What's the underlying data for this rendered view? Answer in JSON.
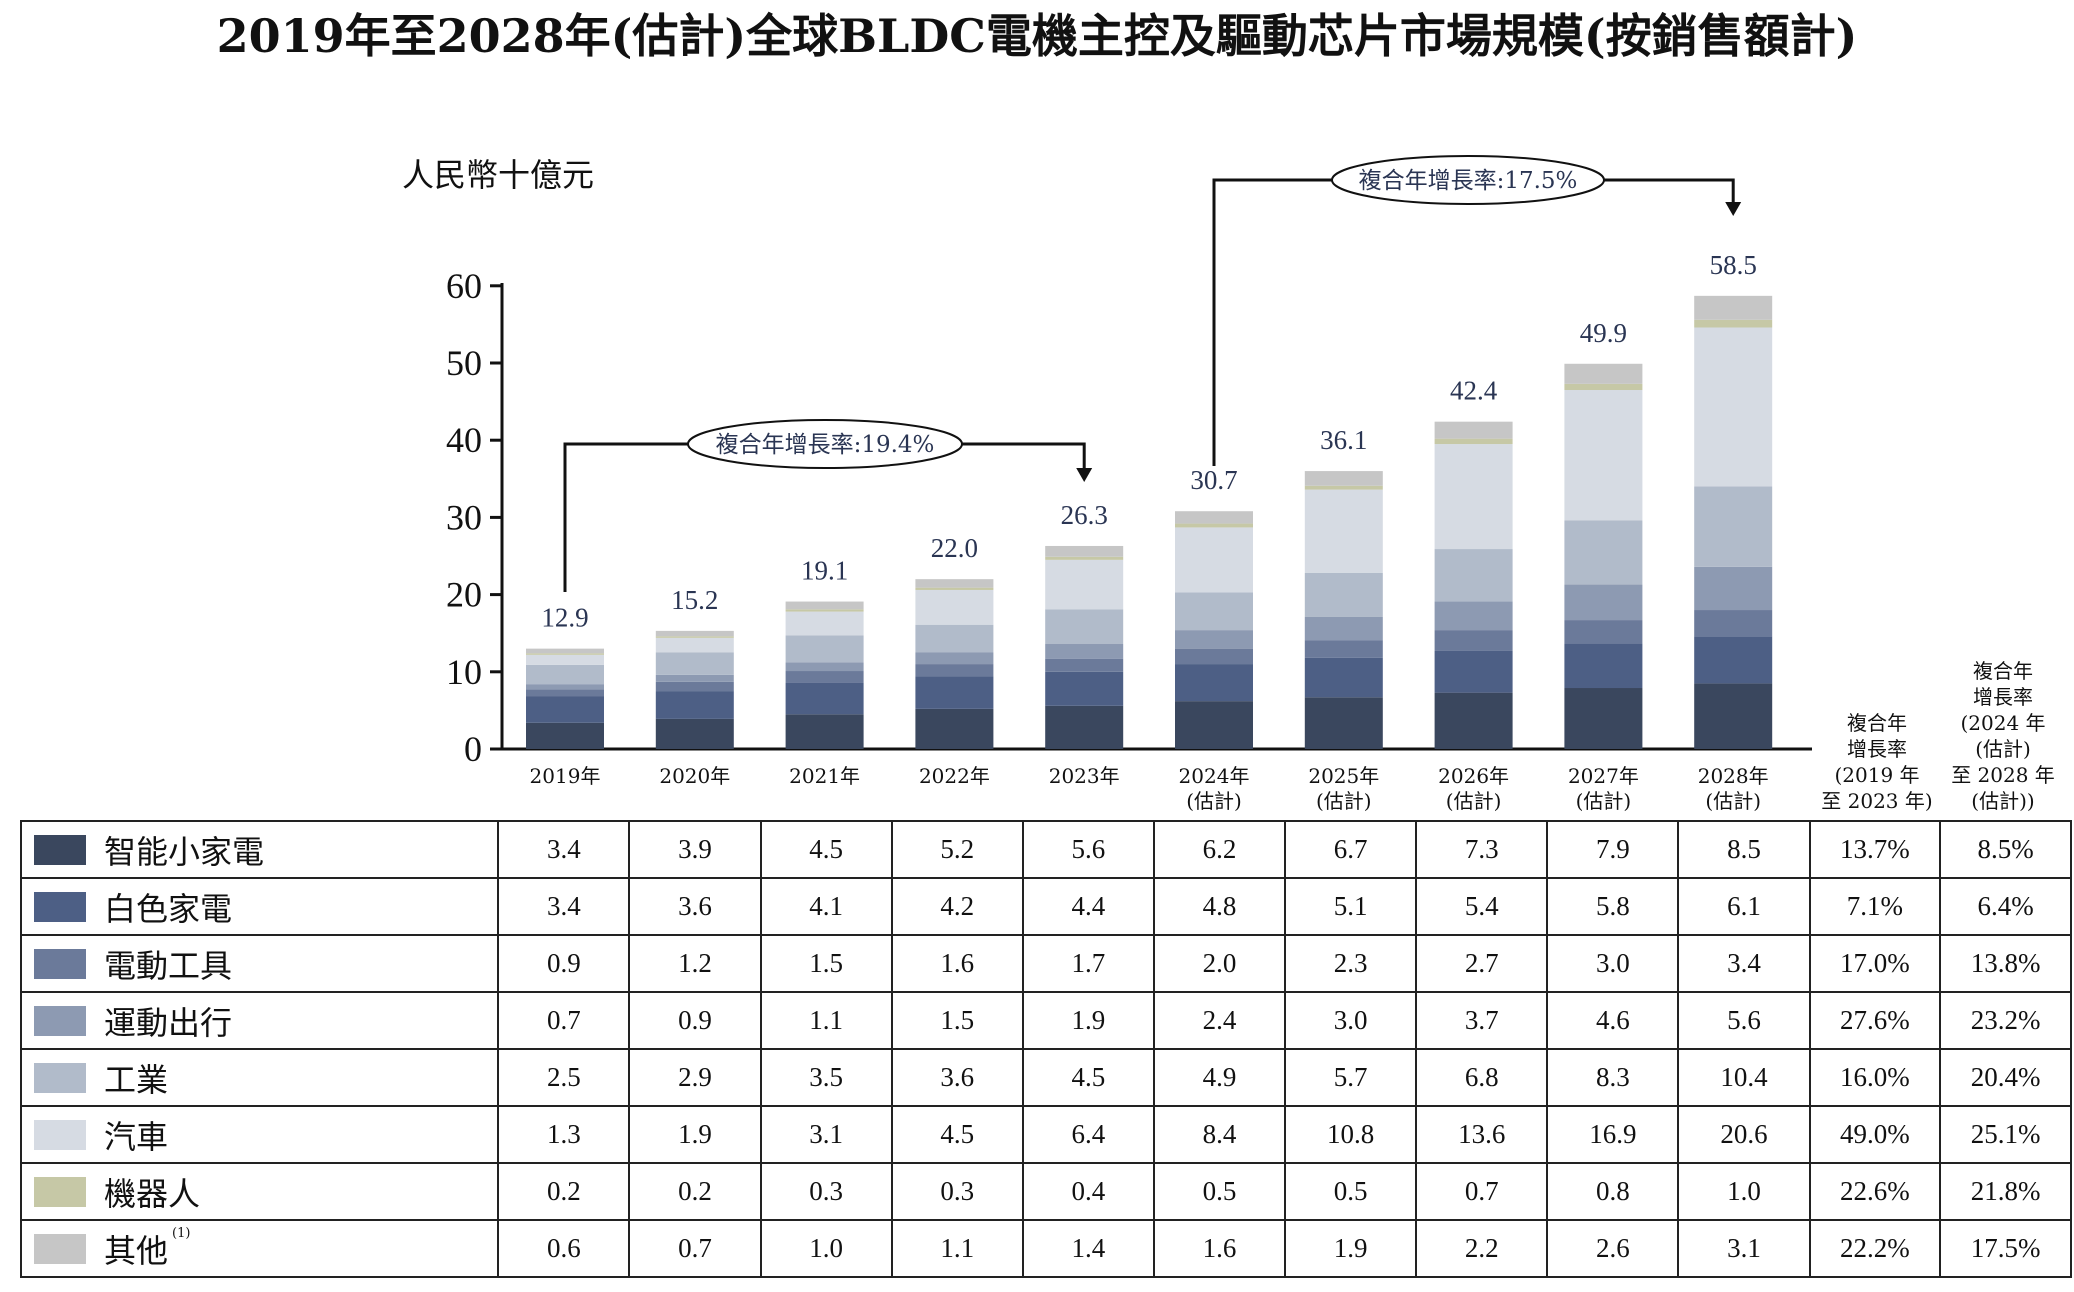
{
  "title": "2019年至2028年(估計)全球BLDC電機主控及驅動芯片市場規模(按銷售額計)",
  "chart_data": {
    "type": "bar",
    "stacked": true,
    "unit": "人民幣十億元",
    "ylim": [
      0,
      60
    ],
    "yticks": [
      "0",
      "10",
      "20",
      "30",
      "40",
      "50",
      "60"
    ],
    "categories": [
      "2019年",
      "2020年",
      "2021年",
      "2022年",
      "2023年",
      "2024年",
      "2025年",
      "2026年",
      "2027年",
      "2028年"
    ],
    "category_notes": [
      "",
      "",
      "",
      "",
      "",
      "(估計)",
      "(估計)",
      "(估計)",
      "(估計)",
      "(估計)"
    ],
    "totals": [
      "12.9",
      "15.2",
      "19.1",
      "22.0",
      "26.3",
      "30.7",
      "36.1",
      "42.4",
      "49.9",
      "58.5"
    ],
    "series": [
      {
        "name": "智能小家電",
        "color": "#3a475e",
        "values": [
          3.4,
          3.9,
          4.5,
          5.2,
          5.6,
          6.2,
          6.7,
          7.3,
          7.9,
          8.5
        ],
        "labels": [
          "3.4",
          "3.9",
          "4.5",
          "5.2",
          "5.6",
          "6.2",
          "6.7",
          "7.3",
          "7.9",
          "8.5"
        ],
        "cagr1": "13.7%",
        "cagr2": "8.5%"
      },
      {
        "name": "白色家電",
        "color": "#4d5f85",
        "values": [
          3.4,
          3.6,
          4.1,
          4.2,
          4.4,
          4.8,
          5.1,
          5.4,
          5.8,
          6.1
        ],
        "labels": [
          "3.4",
          "3.6",
          "4.1",
          "4.2",
          "4.4",
          "4.8",
          "5.1",
          "5.4",
          "5.8",
          "6.1"
        ],
        "cagr1": "7.1%",
        "cagr2": "6.4%"
      },
      {
        "name": "電動工具",
        "color": "#6b7a9a",
        "values": [
          0.9,
          1.2,
          1.5,
          1.6,
          1.7,
          2.0,
          2.3,
          2.7,
          3.0,
          3.4
        ],
        "labels": [
          "0.9",
          "1.2",
          "1.5",
          "1.6",
          "1.7",
          "2.0",
          "2.3",
          "2.7",
          "3.0",
          "3.4"
        ],
        "cagr1": "17.0%",
        "cagr2": "13.8%"
      },
      {
        "name": "運動出行",
        "color": "#8d9ab2",
        "values": [
          0.7,
          0.9,
          1.1,
          1.5,
          1.9,
          2.4,
          3.0,
          3.7,
          4.6,
          5.6
        ],
        "labels": [
          "0.7",
          "0.9",
          "1.1",
          "1.5",
          "1.9",
          "2.4",
          "3.0",
          "3.7",
          "4.6",
          "5.6"
        ],
        "cagr1": "27.6%",
        "cagr2": "23.2%"
      },
      {
        "name": "工業",
        "color": "#b1bbca",
        "values": [
          2.5,
          2.9,
          3.5,
          3.6,
          4.5,
          4.9,
          5.7,
          6.8,
          8.3,
          10.4
        ],
        "labels": [
          "2.5",
          "2.9",
          "3.5",
          "3.6",
          "4.5",
          "4.9",
          "5.7",
          "6.8",
          "8.3",
          "10.4"
        ],
        "cagr1": "16.0%",
        "cagr2": "20.4%"
      },
      {
        "name": "汽車",
        "color": "#d6dbe3",
        "values": [
          1.3,
          1.9,
          3.1,
          4.5,
          6.4,
          8.4,
          10.8,
          13.6,
          16.9,
          20.6
        ],
        "labels": [
          "1.3",
          "1.9",
          "3.1",
          "4.5",
          "6.4",
          "8.4",
          "10.8",
          "13.6",
          "16.9",
          "20.6"
        ],
        "cagr1": "49.0%",
        "cagr2": "25.1%"
      },
      {
        "name": "機器人",
        "color": "#c6c8a6",
        "values": [
          0.2,
          0.2,
          0.3,
          0.3,
          0.4,
          0.5,
          0.5,
          0.7,
          0.8,
          1.0
        ],
        "labels": [
          "0.2",
          "0.2",
          "0.3",
          "0.3",
          "0.4",
          "0.5",
          "0.5",
          "0.7",
          "0.8",
          "1.0"
        ],
        "cagr1": "22.6%",
        "cagr2": "21.8%"
      },
      {
        "name": "其他",
        "footnote": "(1)",
        "color": "#c6c6c6",
        "values": [
          0.6,
          0.7,
          1.0,
          1.1,
          1.4,
          1.6,
          1.9,
          2.2,
          2.6,
          3.1
        ],
        "labels": [
          "0.6",
          "0.7",
          "1.0",
          "1.1",
          "1.4",
          "1.6",
          "1.9",
          "2.2",
          "2.6",
          "3.1"
        ],
        "cagr1": "22.2%",
        "cagr2": "17.5%"
      }
    ],
    "cagr_headers": [
      [
        "複合年",
        "增長率",
        "(2019 年",
        "至 2023 年)"
      ],
      [
        "複合年",
        "增長率",
        "(2024 年",
        "(估計)",
        "至 2028 年",
        "(估計))"
      ]
    ],
    "annotations": [
      {
        "text": "複合年增長率:19.4%",
        "from": "2019年",
        "to": "2023年"
      },
      {
        "text": "複合年增長率:17.5%",
        "from": "2024年",
        "to": "2028年"
      }
    ],
    "grid": false,
    "legend": "table-below"
  }
}
